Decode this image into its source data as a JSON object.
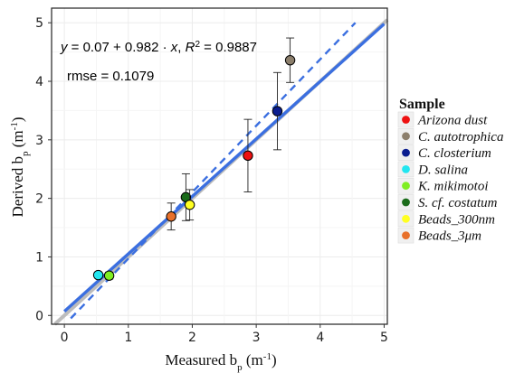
{
  "chart_data": {
    "type": "scatter",
    "xlabel": "Measured b",
    "xlabel_sub": "p",
    "xlabel_unit": " (m",
    "xlabel_unit_sup": "-1",
    "xlabel_unit_close": ")",
    "ylabel": "Derived b",
    "ylabel_sub": "p",
    "ylabel_unit": " (m",
    "ylabel_unit_sup": "-1",
    "ylabel_unit_close": ")",
    "xlim": [
      -0.2,
      5.05
    ],
    "ylim": [
      -0.15,
      5.25
    ],
    "xticks": [
      "0",
      "1",
      "2",
      "3",
      "4",
      "5"
    ],
    "yticks": [
      "0",
      "1",
      "2",
      "3",
      "4",
      "5"
    ],
    "grid": true,
    "annotation_equation": {
      "y": "y",
      "eq": " = 0.07 + 0.982 · ",
      "x": "x",
      "comma": ",  ",
      "R": "R",
      "sup": "2",
      "rest": " = 0.9887"
    },
    "annotation_rmse": "rmse = 0.1079",
    "fit_line": {
      "intercept": 0.07,
      "slope": 0.982,
      "x_range": [
        0,
        5
      ],
      "color": "#3b6fe0"
    },
    "identity_line": {
      "intercept": 0,
      "slope": 1,
      "x_range": [
        -0.15,
        5.05
      ],
      "color": "#bcbcbc"
    },
    "dashed_line": {
      "x_range": [
        0.1,
        4.55
      ],
      "y_range": [
        -0.05,
        5.0
      ],
      "color": "#3b6fe0"
    },
    "legend": {
      "title": "Sample",
      "position": "right",
      "items": [
        {
          "label": "Arizona dust",
          "color": "#ee1111"
        },
        {
          "label": "C. autotrophica",
          "color": "#8c7f6c"
        },
        {
          "label": "C. closterium",
          "color": "#0a1d8f"
        },
        {
          "label": "D. salina",
          "color": "#22e6f0"
        },
        {
          "label": "K. mikimotoi",
          "color": "#7fee22"
        },
        {
          "label": "S. cf. costatum",
          "color": "#1a6b1a"
        },
        {
          "label": "Beads_300nm",
          "color": "#ffff22"
        },
        {
          "label": "Beads_3μm",
          "color": "#e8702a"
        }
      ]
    },
    "points": [
      {
        "sample": "Arizona dust",
        "x": 2.87,
        "y": 2.73,
        "err": 0.62,
        "color": "#ee1111"
      },
      {
        "sample": "C. autotrophica",
        "x": 3.53,
        "y": 4.36,
        "err": 0.38,
        "color": "#8c7f6c"
      },
      {
        "sample": "C. closterium",
        "x": 3.33,
        "y": 3.49,
        "err": 0.66,
        "color": "#0a1d8f"
      },
      {
        "sample": "D. salina",
        "x": 0.53,
        "y": 0.69,
        "err": 0.04,
        "color": "#22e6f0"
      },
      {
        "sample": "K. mikimotoi",
        "x": 0.7,
        "y": 0.68,
        "err": 0.06,
        "color": "#7fee22"
      },
      {
        "sample": "S. cf. costatum",
        "x": 1.9,
        "y": 2.02,
        "err": 0.4,
        "color": "#1a6b1a"
      },
      {
        "sample": "Beads_300nm",
        "x": 1.96,
        "y": 1.89,
        "err": 0.26,
        "color": "#ffff22"
      },
      {
        "sample": "Beads_3μm",
        "x": 1.67,
        "y": 1.69,
        "err": 0.23,
        "color": "#e8702a"
      }
    ]
  }
}
